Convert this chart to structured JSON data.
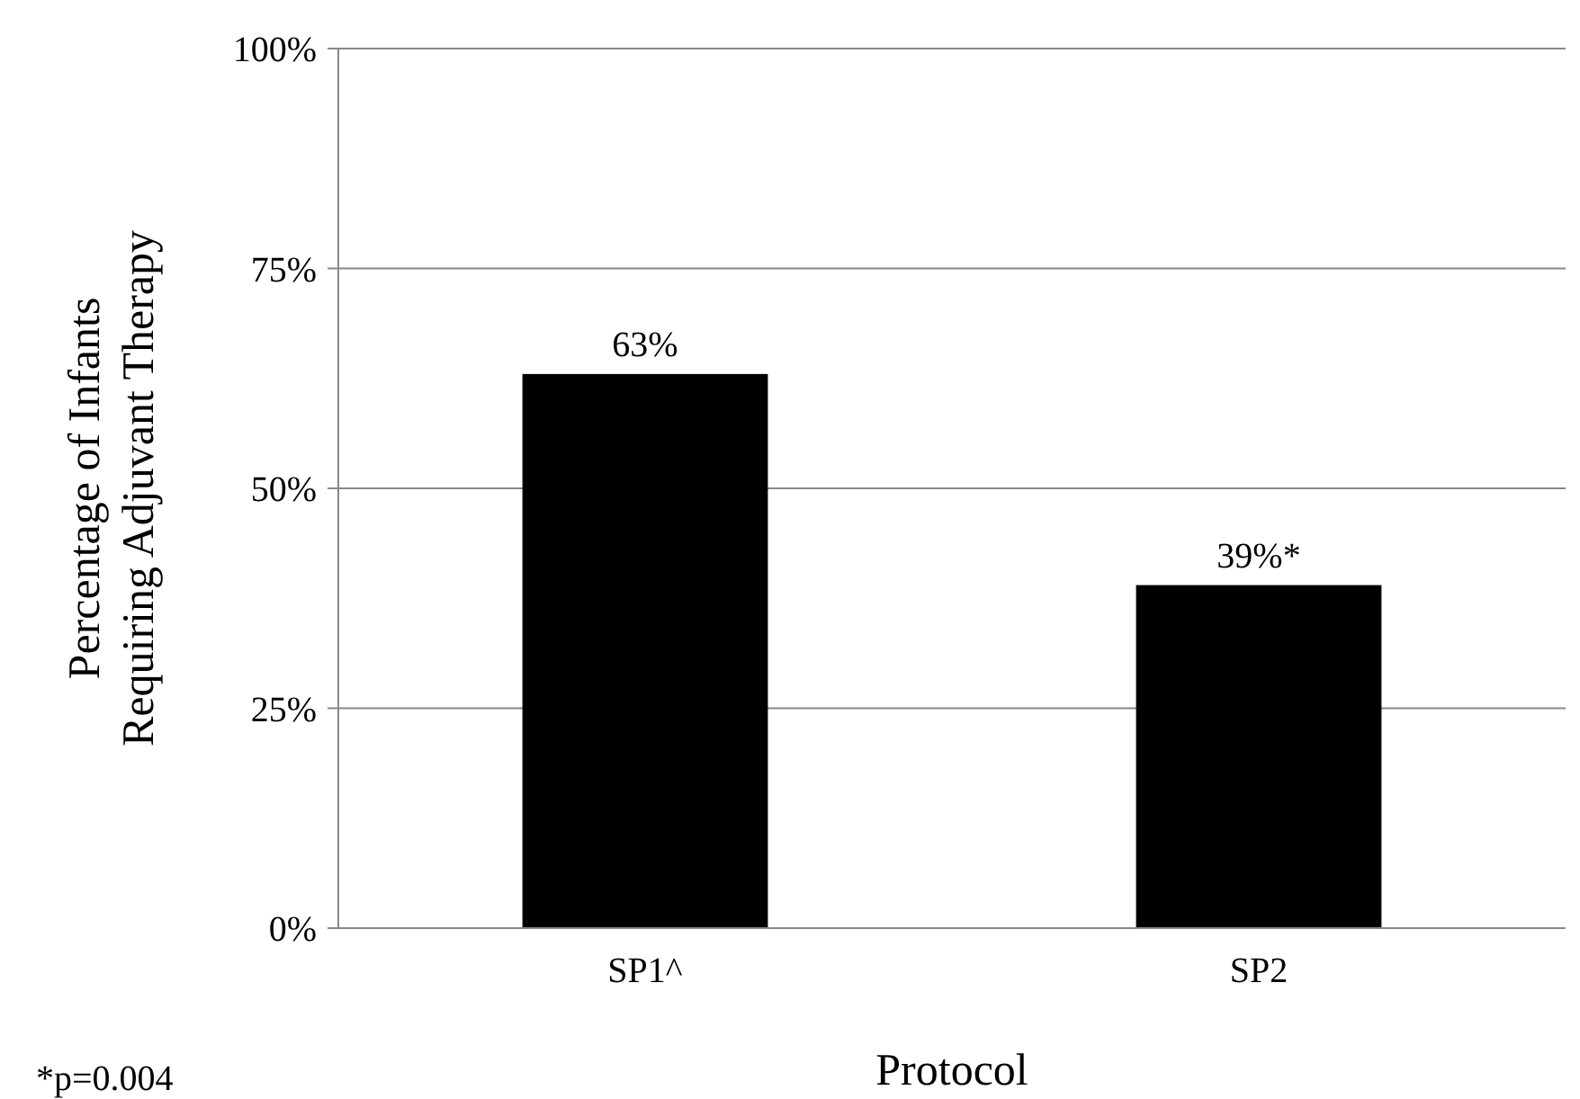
{
  "chart_data": {
    "type": "bar",
    "xlabel": "Protocol",
    "ylabel": "Percentage of Infants\nRequiring Adjuvant Therapy",
    "categories": [
      "SP1^",
      "SP2"
    ],
    "values": [
      63,
      39
    ],
    "color": "#000000",
    "value_labels": [
      "63%",
      "39%*"
    ],
    "ylim": [
      0,
      100
    ],
    "yticks": [
      {
        "value": 0,
        "label": "0%"
      },
      {
        "value": 25,
        "label": "25%"
      },
      {
        "value": 50,
        "label": "50%"
      },
      {
        "value": 75,
        "label": "75%"
      },
      {
        "value": 100,
        "label": "100%"
      }
    ],
    "grid": "y",
    "annotations": [
      "*p=0.004"
    ]
  }
}
